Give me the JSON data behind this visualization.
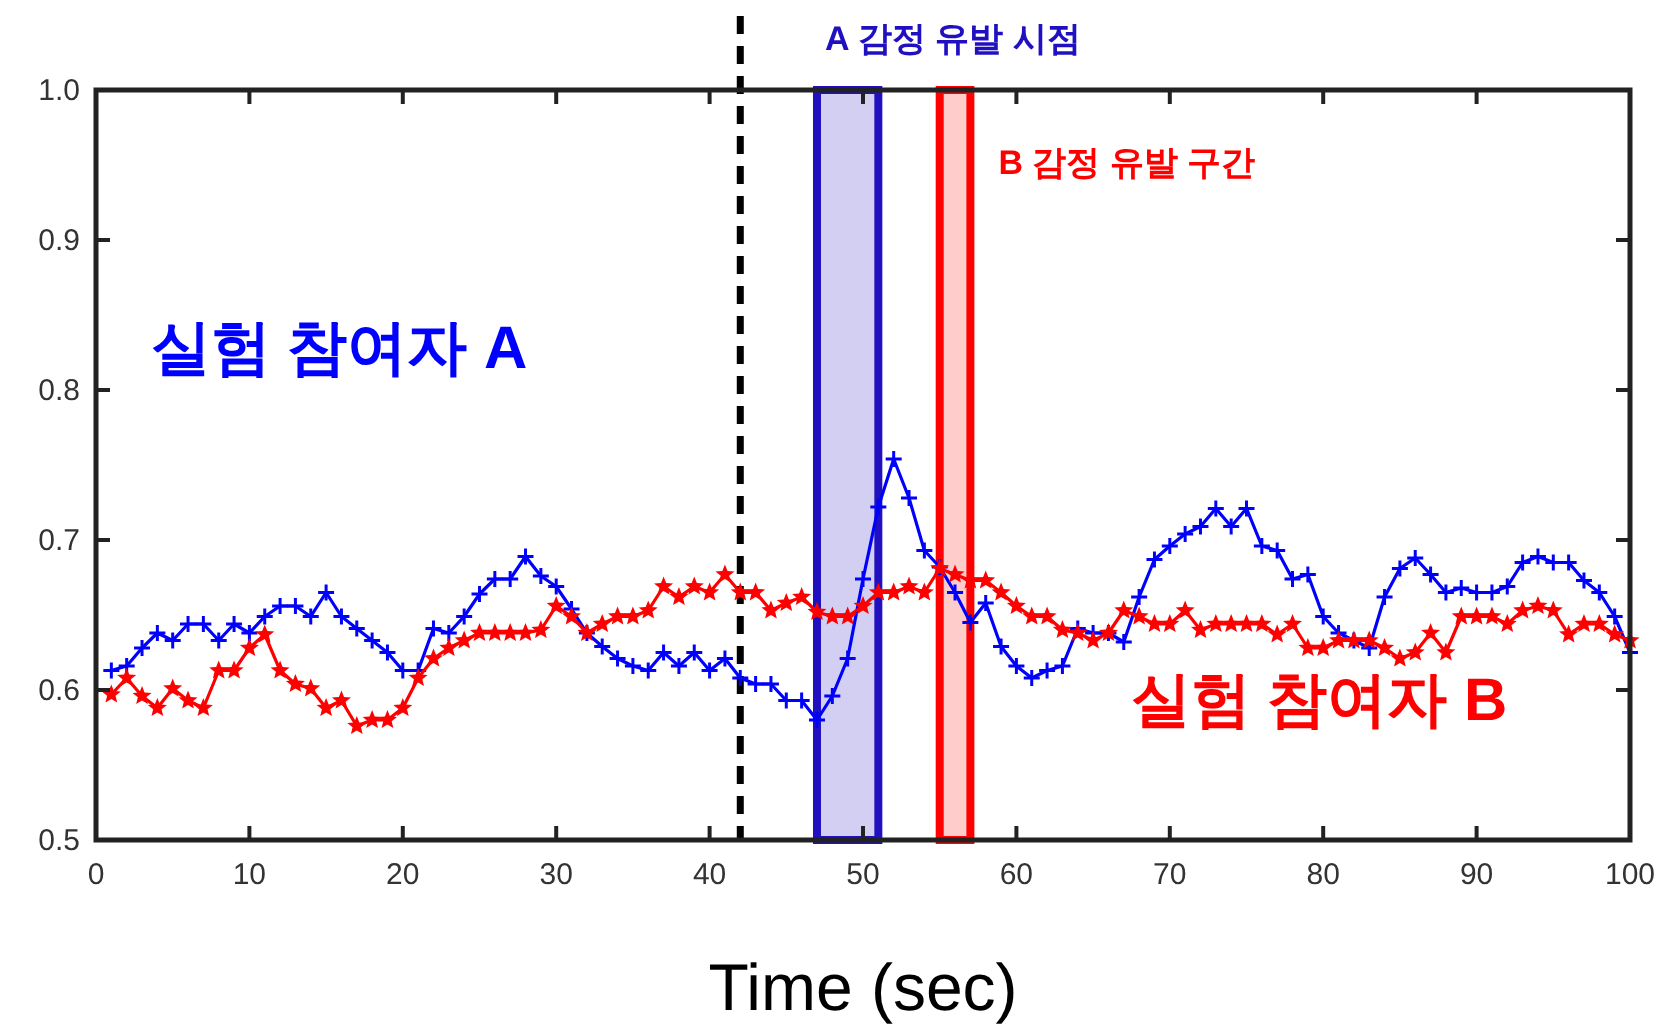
{
  "chart_data": {
    "type": "line",
    "xlabel": "Time (sec)",
    "xlim": [
      0,
      100
    ],
    "ylim": [
      0.5,
      1.0
    ],
    "xticks": [
      0,
      10,
      20,
      30,
      40,
      50,
      60,
      70,
      80,
      90,
      100
    ],
    "yticks": [
      0.5,
      0.6,
      0.7,
      0.8,
      0.9,
      {
        "value": 1.0,
        "label": "1.0"
      }
    ],
    "grid": false,
    "legend": false,
    "line_style": "solid",
    "x": [
      1,
      2,
      3,
      4,
      5,
      6,
      7,
      8,
      9,
      10,
      11,
      12,
      13,
      14,
      15,
      16,
      17,
      18,
      19,
      20,
      21,
      22,
      23,
      24,
      25,
      26,
      27,
      28,
      29,
      30,
      31,
      32,
      33,
      34,
      35,
      36,
      37,
      38,
      39,
      40,
      41,
      42,
      43,
      44,
      45,
      46,
      47,
      48,
      49,
      50,
      51,
      52,
      53,
      54,
      55,
      56,
      57,
      58,
      59,
      60,
      61,
      62,
      63,
      64,
      65,
      66,
      67,
      68,
      69,
      70,
      71,
      72,
      73,
      74,
      75,
      76,
      77,
      78,
      79,
      80,
      81,
      82,
      83,
      84,
      85,
      86,
      87,
      88,
      89,
      90,
      91,
      92,
      93,
      94,
      95,
      96,
      97,
      98,
      99,
      100
    ],
    "series": [
      {
        "name": "실험 참여자 A",
        "color": "#0000ff",
        "marker": "cross",
        "values": [
          0.613,
          0.616,
          0.628,
          0.638,
          0.633,
          0.644,
          0.644,
          0.633,
          0.644,
          0.638,
          0.649,
          0.656,
          0.656,
          0.649,
          0.665,
          0.649,
          0.641,
          0.633,
          0.625,
          0.613,
          0.613,
          0.641,
          0.638,
          0.649,
          0.664,
          0.674,
          0.674,
          0.689,
          0.676,
          0.669,
          0.654,
          0.638,
          0.629,
          0.621,
          0.616,
          0.613,
          0.625,
          0.616,
          0.625,
          0.613,
          0.621,
          0.608,
          0.604,
          0.604,
          0.593,
          0.593,
          0.58,
          0.596,
          0.621,
          0.674,
          0.722,
          0.754,
          0.728,
          0.693,
          0.682,
          0.665,
          0.645,
          0.658,
          0.629,
          0.616,
          0.608,
          0.613,
          0.616,
          0.641,
          0.638,
          0.638,
          0.632,
          0.662,
          0.687,
          0.696,
          0.704,
          0.709,
          0.721,
          0.709,
          0.721,
          0.696,
          0.693,
          0.674,
          0.677,
          0.649,
          0.638,
          0.633,
          0.628,
          0.662,
          0.681,
          0.688,
          0.677,
          0.665,
          0.668,
          0.665,
          0.665,
          0.669,
          0.685,
          0.689,
          0.685,
          0.685,
          0.673,
          0.665,
          0.649,
          0.625
        ]
      },
      {
        "name": "실험 참여자 B",
        "color": "#ff0000",
        "marker": "star",
        "values": [
          0.597,
          0.608,
          0.596,
          0.588,
          0.601,
          0.593,
          0.588,
          0.613,
          0.613,
          0.628,
          0.637,
          0.613,
          0.604,
          0.601,
          0.588,
          0.593,
          0.576,
          0.58,
          0.58,
          0.588,
          0.608,
          0.621,
          0.628,
          0.633,
          0.638,
          0.638,
          0.638,
          0.638,
          0.64,
          0.656,
          0.649,
          0.638,
          0.644,
          0.649,
          0.649,
          0.653,
          0.669,
          0.662,
          0.669,
          0.665,
          0.677,
          0.665,
          0.665,
          0.653,
          0.658,
          0.662,
          0.652,
          0.649,
          0.649,
          0.656,
          0.665,
          0.665,
          0.669,
          0.665,
          0.681,
          0.677,
          0.673,
          0.673,
          0.665,
          0.656,
          0.649,
          0.649,
          0.64,
          0.638,
          0.633,
          0.638,
          0.653,
          0.649,
          0.644,
          0.644,
          0.653,
          0.64,
          0.644,
          0.644,
          0.644,
          0.644,
          0.637,
          0.644,
          0.628,
          0.628,
          0.633,
          0.633,
          0.633,
          0.628,
          0.621,
          0.625,
          0.638,
          0.625,
          0.649,
          0.649,
          0.649,
          0.644,
          0.653,
          0.656,
          0.653,
          0.637,
          0.644,
          0.644,
          0.637,
          0.633
        ]
      }
    ],
    "ref_lines": [
      {
        "axis": "x",
        "value": 42,
        "color": "#000000",
        "line_style": "dashed"
      }
    ],
    "bands": [
      {
        "axis": "x",
        "from": 47,
        "to": 51,
        "label": "A 감정 유발 시점",
        "color": "#2010c0"
      },
      {
        "axis": "x",
        "from": 55,
        "to": 57,
        "label": "B 감정 유발 구간",
        "color": "#ff0000"
      }
    ]
  }
}
